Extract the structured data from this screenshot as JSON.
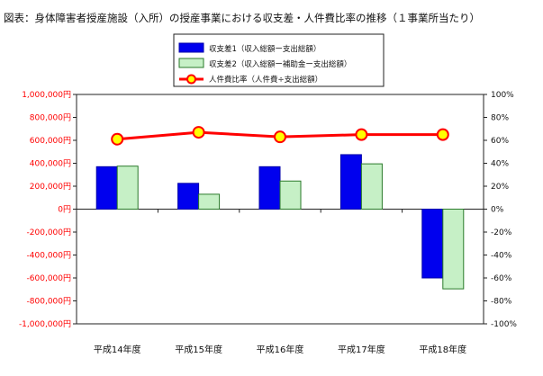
{
  "chart_data": {
    "type": "bar",
    "title": "図表：身体障害者授産施設（入所）の授産事業における収支差・人件費比率の推移（１事業所当たり）",
    "categories": [
      "平成14年度",
      "平成15年度",
      "平成16年度",
      "平成17年度",
      "平成18年度"
    ],
    "series": [
      {
        "name": "収支差1（収入総額ー支出総額）",
        "kind": "bar",
        "axis": "left",
        "color": "#0000ee",
        "values": [
          370000,
          225000,
          370000,
          475000,
          -600000
        ]
      },
      {
        "name": "収支差2（収入総額ー補助金ー支出総額）",
        "kind": "bar",
        "axis": "left",
        "color": "#c6f0c6",
        "values": [
          375000,
          130000,
          245000,
          395000,
          -695000
        ]
      },
      {
        "name": "人件費比率（人件費÷支出総額）",
        "kind": "line",
        "axis": "right",
        "color": "#ff0000",
        "values": [
          61,
          67,
          63,
          65,
          65
        ]
      }
    ],
    "ylim_left": [
      -1000000,
      1000000
    ],
    "ylim_right": [
      -100,
      100
    ],
    "left_tick_labels": [
      "1,000,000円",
      "800,000円",
      "600,000円",
      "400,000円",
      "200,000円",
      "0円",
      "-200,000円",
      "-400,000円",
      "-600,000円",
      "-800,000円",
      "-1,000,000円"
    ],
    "right_tick_labels": [
      "100%",
      "80%",
      "60%",
      "40%",
      "20%",
      "0%",
      "-20%",
      "-40%",
      "-60%",
      "-80%",
      "-100%"
    ],
    "legend_position": "top-center",
    "grid": false
  }
}
